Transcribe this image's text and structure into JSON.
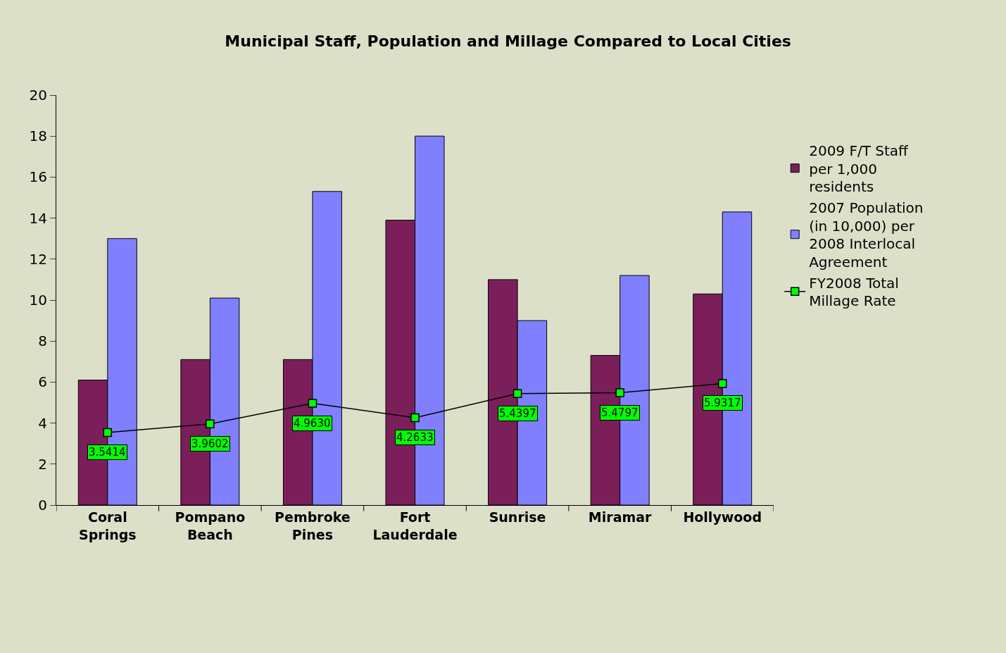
{
  "chart_data": {
    "type": "bar",
    "title": "Municipal Staff, Population and Millage Compared to Local Cities",
    "categories": [
      "Coral Springs",
      "Pompano Beach",
      "Pembroke Pines",
      "Fort Lauderdale",
      "Sunrise",
      "Miramar",
      "Hollywood"
    ],
    "series": [
      {
        "name": "2009 F/T Staff per 1,000 residents",
        "color": "#7b1f5a",
        "values": [
          6.1,
          7.1,
          7.1,
          13.9,
          11.0,
          7.3,
          10.3
        ]
      },
      {
        "name": "2007 Population (in 10,000) per 2008 Interlocal Agreement",
        "color": "#8080ff",
        "values": [
          13.0,
          10.1,
          15.3,
          18.0,
          9.0,
          11.2,
          14.3
        ]
      },
      {
        "name": "FY2008 Total Millage Rate",
        "type": "line",
        "color": "#00ff00",
        "marker": "square",
        "values": [
          3.5414,
          3.9602,
          4.963,
          4.2633,
          5.4397,
          5.4797,
          5.9317
        ],
        "value_labels": [
          "3.5414",
          "3.9602",
          "4.9630",
          "4.2633",
          "5.4397",
          "5.4797",
          "5.9317"
        ]
      }
    ],
    "ylim": [
      0,
      20
    ],
    "yticks": [
      0,
      2,
      4,
      6,
      8,
      10,
      12,
      14,
      16,
      18,
      20
    ],
    "grid": false,
    "legend": "right"
  }
}
